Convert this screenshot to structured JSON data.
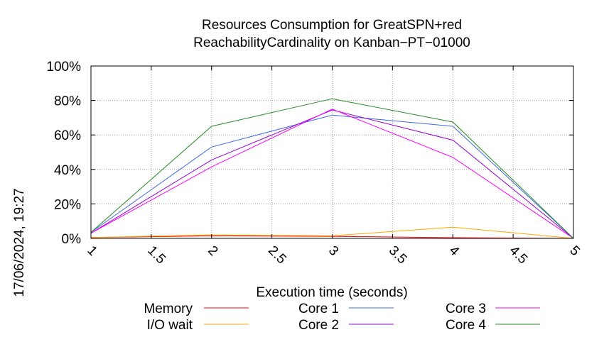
{
  "chart_data": {
    "type": "line",
    "title_line1": "Resources Consumption for GreatSPN+red",
    "title_line2": "ReachabilityCardinality on Kanban−PT−01000",
    "xlabel": "Execution time (seconds)",
    "ylabel": "",
    "timestamp": "17/06/2024, 19:27",
    "xlim": [
      1,
      5
    ],
    "ylim": [
      0,
      100
    ],
    "x_ticks": [
      1,
      1.5,
      2,
      2.5,
      3,
      3.5,
      4,
      4.5,
      5
    ],
    "x_tick_labels": [
      "1",
      "1.5",
      "2",
      "2.5",
      "3",
      "3.5",
      "4",
      "4.5",
      "5"
    ],
    "y_ticks": [
      0,
      20,
      40,
      60,
      80,
      100
    ],
    "y_tick_labels": [
      "0%",
      "20%",
      "40%",
      "60%",
      "80%",
      "100%"
    ],
    "grid": true,
    "legend_placement": "bottom",
    "x": [
      1,
      2,
      3,
      4,
      5
    ],
    "series": [
      {
        "name": "Memory",
        "color": "#ff0000",
        "values": [
          0.5,
          1.5,
          1.2,
          0.4,
          0
        ]
      },
      {
        "name": "I/O wait",
        "color": "#ffa500",
        "values": [
          0.5,
          2,
          1.5,
          6.5,
          0
        ]
      },
      {
        "name": "Core 1",
        "color": "#4169e1",
        "values": [
          3.5,
          53,
          71.5,
          65,
          0
        ]
      },
      {
        "name": "Core 2",
        "color": "#9400d3",
        "values": [
          3,
          45.5,
          74.5,
          57,
          0
        ]
      },
      {
        "name": "Core 3",
        "color": "#ff00ff",
        "values": [
          3,
          41.5,
          75,
          47,
          0
        ]
      },
      {
        "name": "Core 4",
        "color": "#228b22",
        "values": [
          3.5,
          65,
          81,
          67.5,
          0
        ]
      }
    ]
  }
}
